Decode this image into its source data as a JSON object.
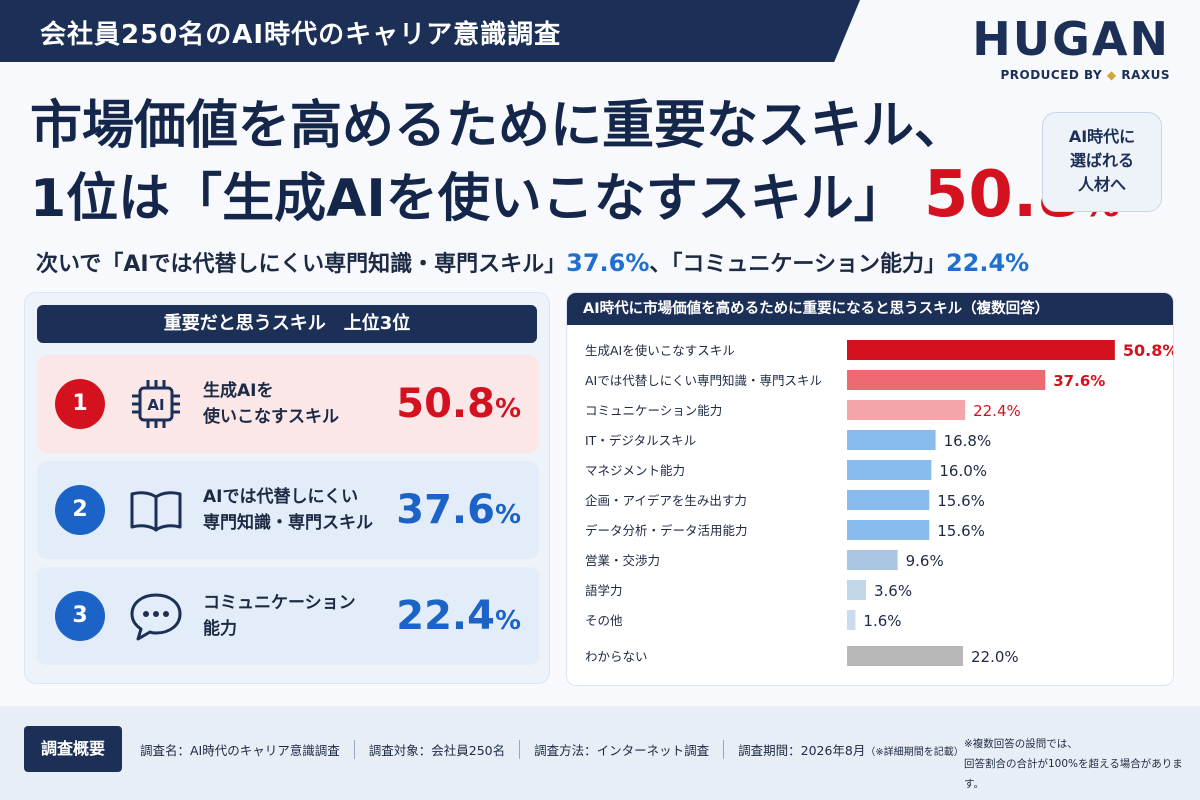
{
  "banner": {
    "title": "会社員250名のAI時代のキャリア意識調査"
  },
  "brand": {
    "name": "HUGAN",
    "produced_by": "PRODUCED BY",
    "partner": "RAXUS"
  },
  "headline": {
    "line1": "市場価値を高めるために重要なスキル、",
    "line2_prefix": "1位は「生成AIを使いこなすスキル」",
    "value": "50.8",
    "unit": "%"
  },
  "badge": {
    "line1": "AI時代に",
    "line2": "選ばれる",
    "line3": "人材へ"
  },
  "subline": {
    "prefix": "次いで「AIでは代替しにくい専門知識・専門スキル」",
    "value1": "37.6%",
    "middle": "、「コミュニケーション能力」",
    "value2": "22.4%"
  },
  "top3": {
    "title": "重要だと思うスキル　上位3位",
    "items": [
      {
        "rank": "1",
        "icon": "ai-chip-icon",
        "label": "生成AIを\n使いこなすスキル",
        "value": "50.8",
        "unit": "%"
      },
      {
        "rank": "2",
        "icon": "open-book-icon",
        "label": "AIでは代替しにくい\n専門知識・専門スキル",
        "value": "37.6",
        "unit": "%"
      },
      {
        "rank": "3",
        "icon": "speech-bubble-icon",
        "label": "コミュニケーション\n能力",
        "value": "22.4",
        "unit": "%"
      }
    ]
  },
  "chart_data": {
    "type": "bar",
    "orientation": "horizontal",
    "title": "AI時代に市場価値を高めるために重要になると思うスキル（複数回答）",
    "categories": [
      "生成AIを使いこなすスキル",
      "AIでは代替しにくい専門知識・専門スキル",
      "コミュニケーション能力",
      "IT・デジタルスキル",
      "マネジメント能力",
      "企画・アイデアを生み出す力",
      "データ分析・データ活用能力",
      "営業・交渉力",
      "語学力",
      "その他",
      "わからない"
    ],
    "values": [
      50.8,
      37.6,
      22.4,
      16.8,
      16.0,
      15.6,
      15.6,
      9.6,
      3.6,
      1.6,
      22.0
    ],
    "value_labels": [
      "50.8%",
      "37.6%",
      "22.4%",
      "16.8%",
      "16.0%",
      "15.6%",
      "15.6%",
      "9.6%",
      "3.6%",
      "1.6%",
      "22.0%"
    ],
    "bar_colors": [
      "#d4121f",
      "#ec6b73",
      "#f4a5aa",
      "#88bcee",
      "#88bcee",
      "#88bcee",
      "#88bcee",
      "#a9c6e2",
      "#c2d6ea",
      "#c9dbed",
      "#b8b8b8"
    ],
    "label_colors": [
      "#d4121f",
      "#d4121f",
      "#d4121f",
      "#1d2a44",
      "#1d2a44",
      "#1d2a44",
      "#1d2a44",
      "#1d2a44",
      "#1d2a44",
      "#1d2a44",
      "#1d2a44"
    ],
    "xlim": [
      0,
      55
    ],
    "grid": false,
    "legend": "none"
  },
  "footer": {
    "tag": "調査概要",
    "survey_name": "調査名：AI時代のキャリア意識調査",
    "survey_target": "調査対象：会社員250名",
    "survey_method": "調査方法：インターネット調査",
    "survey_period": "調査期間：2026年8月",
    "survey_period_note": "（※詳細期間を記載）",
    "note_line1": "※複数回答の設問では、",
    "note_line2": "回答割合の合計が100%を超える場合があります。"
  },
  "colors": {
    "navy": "#1b2f57",
    "red": "#d4121f",
    "blue": "#1b63c6",
    "gold": "#d4a537"
  }
}
